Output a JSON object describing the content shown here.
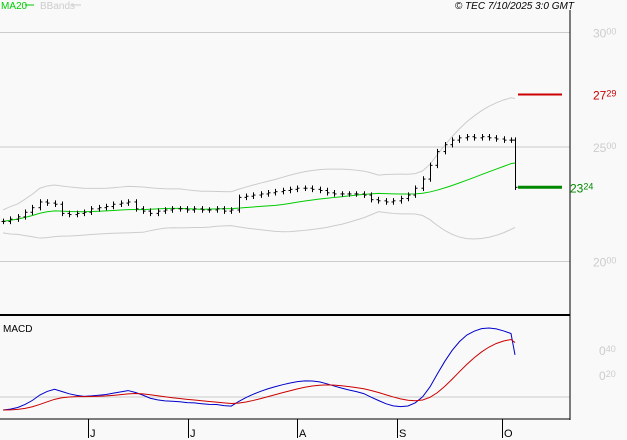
{
  "header": {
    "legend": [
      {
        "name": "MA20",
        "color": "#00cc00"
      },
      {
        "name": "BBands",
        "color": "#cccccc"
      }
    ],
    "copyright": "© TEC 7/10/2025 3:0 GMT"
  },
  "chart_data": [
    {
      "type": "ohlc-bar",
      "yaxis_ticks": [
        {
          "int": "30",
          "dec": "00",
          "value": 30.0
        },
        {
          "int": "25",
          "dec": "00",
          "value": 25.0
        },
        {
          "int": "20",
          "dec": "00",
          "value": 20.0
        }
      ],
      "ylim": [
        19.0,
        31.4
      ],
      "grid": true,
      "close": [
        21.75,
        21.85,
        21.95,
        22.15,
        22.35,
        22.6,
        22.55,
        22.5,
        22.1,
        22.05,
        22.1,
        22.15,
        22.3,
        22.35,
        22.4,
        22.5,
        22.55,
        22.6,
        22.3,
        22.2,
        22.1,
        22.2,
        22.25,
        22.3,
        22.3,
        22.25,
        22.3,
        22.25,
        22.25,
        22.3,
        22.2,
        22.25,
        22.8,
        22.85,
        22.9,
        22.95,
        23.0,
        23.05,
        23.1,
        23.15,
        23.2,
        23.2,
        23.15,
        23.1,
        23.0,
        22.95,
        22.95,
        22.95,
        22.95,
        22.9,
        22.7,
        22.65,
        22.6,
        22.65,
        22.75,
        22.9,
        23.2,
        23.6,
        24.2,
        24.8,
        25.1,
        25.3,
        25.4,
        25.45,
        25.4,
        25.45,
        25.4,
        25.35,
        25.3,
        25.3,
        23.24
      ],
      "overlays": [
        "MA20",
        "BBands"
      ],
      "levels": [
        {
          "int": "27",
          "dec": "29",
          "value": 27.29,
          "color": "#cc0000"
        },
        {
          "int": "23",
          "dec": "24",
          "value": 23.24,
          "color": "#008800"
        }
      ],
      "colors": {
        "bars": "#000000",
        "ma": "#00cc00",
        "bands": "#cccccc"
      }
    },
    {
      "type": "line",
      "title": "MACD",
      "yaxis_ticks": [
        {
          "int": "0",
          "dec": "40",
          "value": 0.4
        },
        {
          "int": "0",
          "dec": "20",
          "value": 0.2
        }
      ],
      "series_colors": {
        "macd": "#0000cc",
        "signal": "#cc0000"
      }
    }
  ],
  "xaxis": {
    "ticks": [
      "J",
      "J",
      "A",
      "S",
      "O"
    ]
  }
}
